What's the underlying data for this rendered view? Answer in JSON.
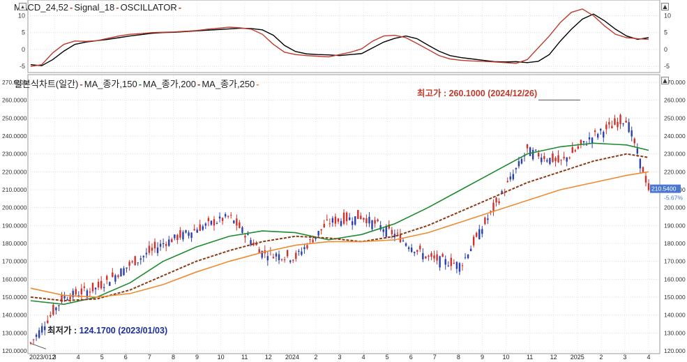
{
  "macd_panel": {
    "legend": [
      {
        "label": "MACD_24,52",
        "color": "#000000"
      },
      {
        "label": "Signal_18",
        "color": "#c0392b"
      },
      {
        "label": "OSCILLATOR",
        "color": "#c0392b"
      }
    ],
    "y_ticks": [
      10,
      5,
      0,
      -5
    ]
  },
  "price_panel": {
    "legend": [
      {
        "label": "일본식차트(일간)",
        "color": "#c0392b"
      },
      {
        "label": "MA_종가,150",
        "color": "#1e8a2e"
      },
      {
        "label": "MA_종가,200",
        "color": "#8b3a14"
      },
      {
        "label": "MA_종가,250",
        "color": "#f08a30"
      }
    ],
    "y_ticks_left": [
      "270.0000",
      "260.0000",
      "250.0000",
      "240.0000",
      "230.0000",
      "220.0000",
      "210.0000",
      "200.0000",
      "190.0000",
      "180.0000",
      "170.0000",
      "160.0000",
      "150.0000",
      "140.0000",
      "130.0000",
      "120.0000"
    ],
    "y_ticks_right": [
      "270.000",
      "260.000",
      "250.000",
      "240.000",
      "230.000",
      "220.000",
      "210.000",
      "200.000",
      "190.000",
      "180.000",
      "170.000",
      "160.000",
      "150.000",
      "140.000",
      "130.000",
      "120.000"
    ],
    "high_label": "최고가 : 260.1000 (2024/12/26)",
    "low_label_prefix": "최저가 : ",
    "low_label_value": "124.1700 (2023/01/03)",
    "last_price": "210.5400",
    "last_change": "-5.67%"
  },
  "x_axis": {
    "labels": [
      "2023/012",
      "3",
      "4",
      "5",
      "6",
      "7",
      "8",
      "9",
      "10",
      "11",
      "12",
      "2024",
      "2",
      "3",
      "4",
      "5",
      "6",
      "7",
      "8",
      "9",
      "10",
      "11",
      "12",
      "2025",
      "2",
      "3",
      "4"
    ]
  },
  "colors": {
    "up": "#d0312d",
    "down": "#2a3fb0",
    "macd": "#000000",
    "signal": "#c0392b",
    "ma150": "#1e8a2e",
    "ma200": "#8b3a14",
    "ma250": "#f08a30",
    "high_text": "#c0392b",
    "low_text": "#1a2f9e",
    "last_badge": "#4a78d0"
  },
  "chart_data": [
    {
      "type": "line",
      "title": "MACD_24,52-Signal_18-OSCILLATOR",
      "ylim": [
        -6,
        13
      ],
      "x": [
        0,
        10,
        20,
        30,
        40,
        50,
        60,
        70,
        80,
        90,
        100,
        110,
        120,
        130,
        140,
        150,
        160,
        170,
        180,
        190,
        200,
        210,
        220,
        230,
        240,
        250,
        260,
        270,
        280,
        290,
        300,
        310,
        320,
        330,
        340,
        350,
        360,
        370,
        380,
        390,
        400,
        410,
        420,
        430,
        440,
        450,
        460,
        470,
        480,
        490,
        500,
        510,
        520,
        530,
        540,
        550,
        560
      ],
      "series": [
        {
          "name": "MACD_24,52",
          "values": [
            -4.5,
            -4.8,
            -3,
            -0.5,
            1.5,
            2.2,
            2.6,
            3,
            3.5,
            4,
            4.4,
            4.8,
            5,
            5.1,
            5.3,
            5.5,
            5.7,
            5.9,
            6.1,
            6.3,
            6.2,
            5.8,
            4.2,
            1.2,
            -0.6,
            -1.3,
            -1.5,
            -1.6,
            -1.8,
            -1.5,
            -1.2,
            0.5,
            2.2,
            3.3,
            4,
            3.2,
            1.3,
            -0.5,
            -1.8,
            -2.4,
            -2.8,
            -3.2,
            -3.6,
            -3.7,
            -3.6,
            -3.9,
            -3.5,
            -1.5,
            2.5,
            6,
            9,
            10.5,
            8.5,
            6,
            4,
            3,
            3.5
          ]
        },
        {
          "name": "Signal_18",
          "values": [
            -5,
            -4.5,
            -1,
            1.5,
            2.5,
            2.4,
            2.6,
            3.3,
            4,
            4.5,
            4.7,
            5,
            5.1,
            5.2,
            5.4,
            5.6,
            6,
            6.3,
            6.6,
            6.4,
            6,
            4.5,
            1.5,
            -0.8,
            -1.5,
            -1.8,
            -2,
            -2.2,
            -1.5,
            -0.8,
            0.2,
            2.5,
            4,
            4.2,
            3.5,
            1.8,
            0,
            -1.8,
            -2.8,
            -3.2,
            -3.4,
            -3.5,
            -3.7,
            -3.9,
            -4.1,
            -3,
            0.5,
            4,
            8,
            11,
            12,
            10,
            7,
            4.5,
            3.5,
            3.2,
            3
          ]
        }
      ]
    },
    {
      "type": "line",
      "title": "일본식차트(일간)-MA_종가,150-MA_종가,200-MA_종가,250",
      "ylim": [
        120,
        270
      ],
      "x": [
        0,
        30,
        60,
        90,
        120,
        150,
        180,
        210,
        240,
        270,
        300,
        330,
        360,
        390,
        420,
        450,
        480,
        510,
        540,
        560
      ],
      "series": [
        {
          "name": "일본식차트(일간)",
          "values": [
            124.17,
            150,
            155,
            168,
            180,
            188,
            195,
            175,
            172,
            192,
            195,
            185,
            172,
            168,
            200,
            232,
            225,
            240,
            250,
            210.54
          ]
        },
        {
          "name": "MA_종가,150",
          "values": [
            148,
            146,
            150,
            158,
            170,
            178,
            184,
            187,
            186,
            182,
            185,
            191,
            200,
            210,
            220,
            230,
            234,
            236,
            235,
            232
          ]
        },
        {
          "name": "MA_종가,200",
          "values": [
            150,
            148,
            149,
            154,
            162,
            170,
            176,
            181,
            184,
            183,
            181,
            184,
            190,
            198,
            206,
            214,
            220,
            226,
            230,
            228
          ]
        },
        {
          "name": "MA_종가,250",
          "values": [
            155,
            151,
            150,
            152,
            157,
            164,
            170,
            175,
            179,
            181,
            181,
            182,
            186,
            192,
            198,
            204,
            210,
            214,
            218,
            220
          ]
        }
      ],
      "annotations": [
        {
          "text": "최고가 : 260.1000 (2024/12/26)",
          "value": 260.1
        },
        {
          "text": "최저가 : 124.1700 (2023/01/03)",
          "value": 124.17
        }
      ]
    }
  ]
}
